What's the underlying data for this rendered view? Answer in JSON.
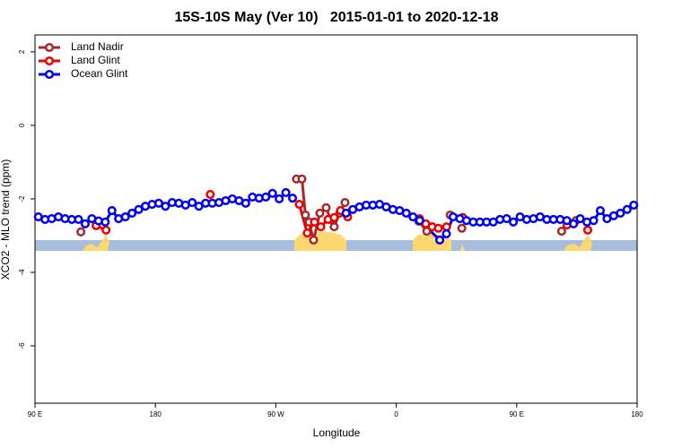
{
  "chart_data": {
    "type": "line",
    "title": "15S-10S May (Ver 10)   2015-01-01 to 2020-12-18",
    "xlabel": "Longitude",
    "ylabel": "XCO2 - MLO trend (ppm)",
    "xlim": [
      90,
      540
    ],
    "ylim": [
      -7.56,
      2.46
    ],
    "xticks": [
      {
        "value": 90,
        "label": "90 E"
      },
      {
        "value": 180,
        "label": "180"
      },
      {
        "value": 270,
        "label": "90 W"
      },
      {
        "value": 360,
        "label": "0"
      },
      {
        "value": 450,
        "label": "90 E"
      },
      {
        "value": 540,
        "label": "180"
      }
    ],
    "yticks": [
      2,
      0,
      -2,
      -4,
      -6
    ],
    "legend": "top-left",
    "series": [
      {
        "name": "Land Nadir",
        "color": "#a52a2a",
        "x": [
          124.3,
          200,
          285.4,
          289.5,
          292.1,
          294.8,
          298.2,
          302.9,
          307.6,
          311.0,
          313.6,
          317.7,
          321.7,
          350,
          376.8,
          382.8,
          386.8,
          395,
          400.3,
          405,
          409.0,
          450,
          483.6,
          490,
          494.3
        ],
        "values": [
          -2.9,
          null,
          -1.46,
          -1.46,
          -2.44,
          -2.63,
          -3.12,
          -2.39,
          -2.24,
          -2.56,
          -2.76,
          -2.39,
          -2.1,
          null,
          -2.61,
          -2.88,
          -2.76,
          null,
          -2.44,
          null,
          -2.8,
          null,
          -2.88,
          null,
          -2.59
        ]
      },
      {
        "name": "Land Glint",
        "color": "#ee0000",
        "x": [
          135.7,
          143.1,
          180,
          221.0,
          250,
          287.5,
          293.5,
          298.9,
          303.6,
          309.0,
          313.6,
          318.3,
          323.7,
          350,
          377.4,
          382.1,
          386.8,
          391.5,
          397.6,
          403,
          409.7,
          450,
          487.6,
          495,
          503.1
        ],
        "values": [
          -2.73,
          -2.85,
          null,
          -1.88,
          null,
          -2.15,
          -2.93,
          -2.63,
          -2.76,
          -2.56,
          -2.51,
          -2.32,
          -2.49,
          null,
          -2.54,
          -2.68,
          -2.76,
          -2.8,
          -2.76,
          null,
          -2.51,
          null,
          -2.71,
          null,
          -2.85
        ]
      },
      {
        "name": "Ocean Glint",
        "color": "#0000ee",
        "x": [
          92.5,
          97.5,
          102.5,
          107.5,
          112.5,
          117.5,
          122.5,
          127.5,
          132.5,
          137.5,
          142.5,
          147.5,
          152.5,
          157.5,
          162.5,
          167.5,
          172.5,
          177.5,
          182.5,
          187.5,
          192.5,
          197.5,
          202.5,
          207.5,
          212.5,
          217.5,
          222.5,
          227.5,
          232.5,
          237.5,
          242.5,
          247.5,
          252.5,
          257.5,
          262.5,
          267.5,
          272.5,
          277.5,
          282.5,
          302.5,
          322.5,
          327.5,
          332.5,
          337.5,
          342.5,
          347.5,
          352.5,
          357.5,
          362.5,
          367.5,
          372.5,
          377.5,
          392.5,
          397.5,
          402.5,
          407.5,
          412.5,
          417.5,
          422.5,
          427.5,
          432.5,
          437.5,
          442.5,
          447.5,
          452.5,
          457.5,
          462.5,
          467.5,
          472.5,
          477.5,
          482.5,
          487.5,
          492.5,
          497.5,
          502.5,
          507.5,
          512.5,
          517.5,
          522.5,
          527.5,
          532.5,
          537.5
        ],
        "values": [
          -2.49,
          -2.56,
          -2.54,
          -2.49,
          -2.54,
          -2.56,
          -2.56,
          -2.68,
          -2.54,
          -2.6,
          -2.63,
          -2.32,
          -2.54,
          -2.49,
          -2.39,
          -2.29,
          -2.2,
          -2.15,
          -2.12,
          -2.2,
          -2.1,
          -2.12,
          -2.17,
          -2.1,
          -2.2,
          -2.12,
          -2.12,
          -2.1,
          -2.05,
          -2.0,
          -2.05,
          -2.12,
          -1.95,
          -1.98,
          -1.95,
          -1.85,
          -2.0,
          -1.83,
          -1.98,
          null,
          -2.39,
          -2.29,
          -2.22,
          -2.17,
          -2.17,
          -2.15,
          -2.22,
          -2.29,
          -2.32,
          -2.39,
          -2.49,
          -2.59,
          -3.12,
          -2.95,
          -2.49,
          -2.54,
          -2.59,
          -2.63,
          -2.63,
          -2.63,
          -2.63,
          -2.56,
          -2.54,
          -2.63,
          -2.49,
          -2.56,
          -2.54,
          -2.49,
          -2.56,
          -2.56,
          -2.56,
          -2.59,
          -2.68,
          -2.54,
          -2.63,
          -2.59,
          -2.32,
          -2.54,
          -2.46,
          -2.39,
          -2.29,
          -2.17
        ]
      }
    ]
  }
}
